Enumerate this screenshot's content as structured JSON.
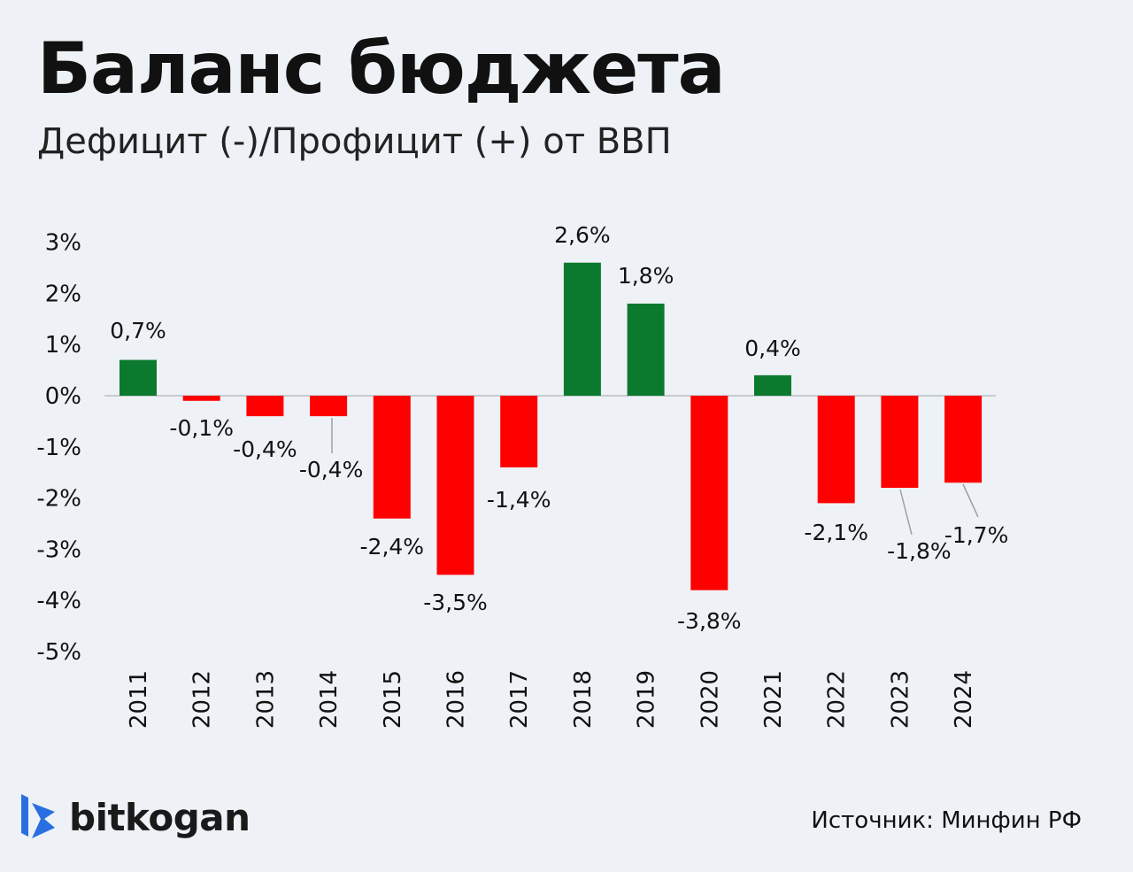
{
  "brand": "bitkogan",
  "source": "Источник: Минфин РФ",
  "colors": {
    "positive": "#0b7a2e",
    "negative": "#ff0000",
    "background": "#eef2f6",
    "logo": "#2a6fe0"
  },
  "chart_data": {
    "type": "bar",
    "title": "Баланс бюджета",
    "subtitle": "Дефицит (-)/Профицит (+) от ВВП",
    "categories": [
      "2011",
      "2012",
      "2013",
      "2014",
      "2015",
      "2016",
      "2017",
      "2018",
      "2019",
      "2020",
      "2021",
      "2022",
      "2023",
      "2024"
    ],
    "values": [
      0.7,
      -0.1,
      -0.4,
      -0.4,
      -2.4,
      -3.5,
      -1.4,
      2.6,
      1.8,
      -3.8,
      0.4,
      -2.1,
      -1.8,
      -1.7
    ],
    "data_labels": [
      "0,7%",
      "-0,1%",
      "-0,4%",
      "-0,4%",
      "-2,4%",
      "-3,5%",
      "-1,4%",
      "2,6%",
      "1,8%",
      "-3,8%",
      "0,4%",
      "-2,1%",
      "-1,8%",
      "-1,7%"
    ],
    "yticks": [
      3,
      2,
      1,
      0,
      -1,
      -2,
      -3,
      -4,
      -5
    ],
    "ytick_labels": [
      "3%",
      "2%",
      "1%",
      "0%",
      "-1%",
      "-2%",
      "-3%",
      "-4%",
      "-5%"
    ],
    "ylim": [
      -5,
      3
    ],
    "grid": false,
    "legend": "none"
  }
}
